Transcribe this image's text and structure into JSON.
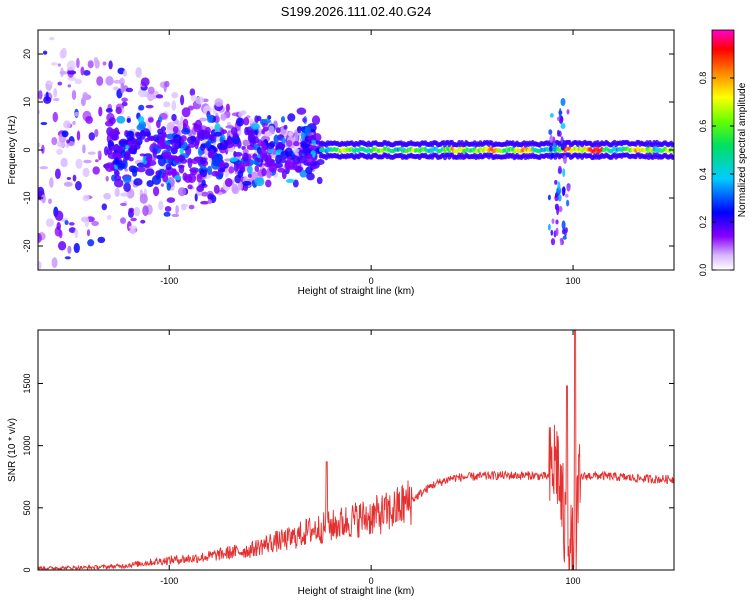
{
  "title": "S199.2026.111.02.40.G24",
  "colors": {
    "snr_line": "#e53030",
    "axis": "#000000",
    "background": "#ffffff"
  },
  "chart_data": [
    {
      "type": "heatmap",
      "title": "S199.2026.111.02.40.G24",
      "xlabel": "Height of straight line (km)",
      "ylabel": "Frequency (Hz)",
      "xlim": [
        -165,
        150
      ],
      "ylim": [
        -25,
        25
      ],
      "x_ticks": [
        -100,
        0,
        100
      ],
      "y_ticks": [
        -20,
        -10,
        0,
        10,
        20
      ],
      "colorbar": {
        "label": "Normalized spectral amplitude",
        "range": [
          0.0,
          1.0
        ],
        "ticks": [
          0.0,
          0.2,
          0.4,
          0.6,
          0.8
        ],
        "colormap": "rainbow (white-violet-blue-cyan-green-yellow-red-magenta)"
      },
      "features": [
        {
          "name": "dominant ridge",
          "x_range": [
            -25,
            150
          ],
          "frequency": 0,
          "amplitude_range": [
            0.4,
            0.9
          ]
        },
        {
          "name": "scattered noise",
          "x_range": [
            -165,
            -30
          ],
          "frequency_range": [
            -25,
            25
          ],
          "amplitude_range": [
            0.05,
            0.3
          ]
        },
        {
          "name": "burst near 95 km",
          "x": 95,
          "frequency_range": [
            -20,
            10
          ],
          "amplitude_range": [
            0.1,
            0.4
          ]
        }
      ]
    },
    {
      "type": "line",
      "xlabel": "Height of straight line (km)",
      "ylabel": "SNR (10 * v/v)",
      "xlim": [
        -165,
        150
      ],
      "ylim": [
        0,
        1930
      ],
      "x_ticks": [
        -100,
        0,
        100
      ],
      "y_ticks": [
        0,
        500,
        1000,
        1500
      ],
      "series": [
        {
          "name": "SNR",
          "x": [
            -165,
            -140,
            -125,
            -110,
            -100,
            -90,
            -80,
            -70,
            -60,
            -50,
            -40,
            -30,
            -20,
            -10,
            0,
            10,
            20,
            30,
            40,
            50,
            60,
            70,
            80,
            88,
            92,
            96,
            100,
            104,
            110,
            120,
            130,
            140,
            150
          ],
          "values": [
            15,
            20,
            30,
            60,
            80,
            90,
            110,
            140,
            160,
            220,
            250,
            320,
            350,
            400,
            430,
            470,
            560,
            680,
            740,
            750,
            760,
            760,
            760,
            750,
            900,
            300,
            100,
            750,
            760,
            750,
            740,
            730,
            730
          ],
          "peaks": [
            {
              "x": -22,
              "y": 870
            },
            {
              "x": 97,
              "y": 1480
            },
            {
              "x": 101,
              "y": 1930
            }
          ]
        }
      ]
    }
  ]
}
